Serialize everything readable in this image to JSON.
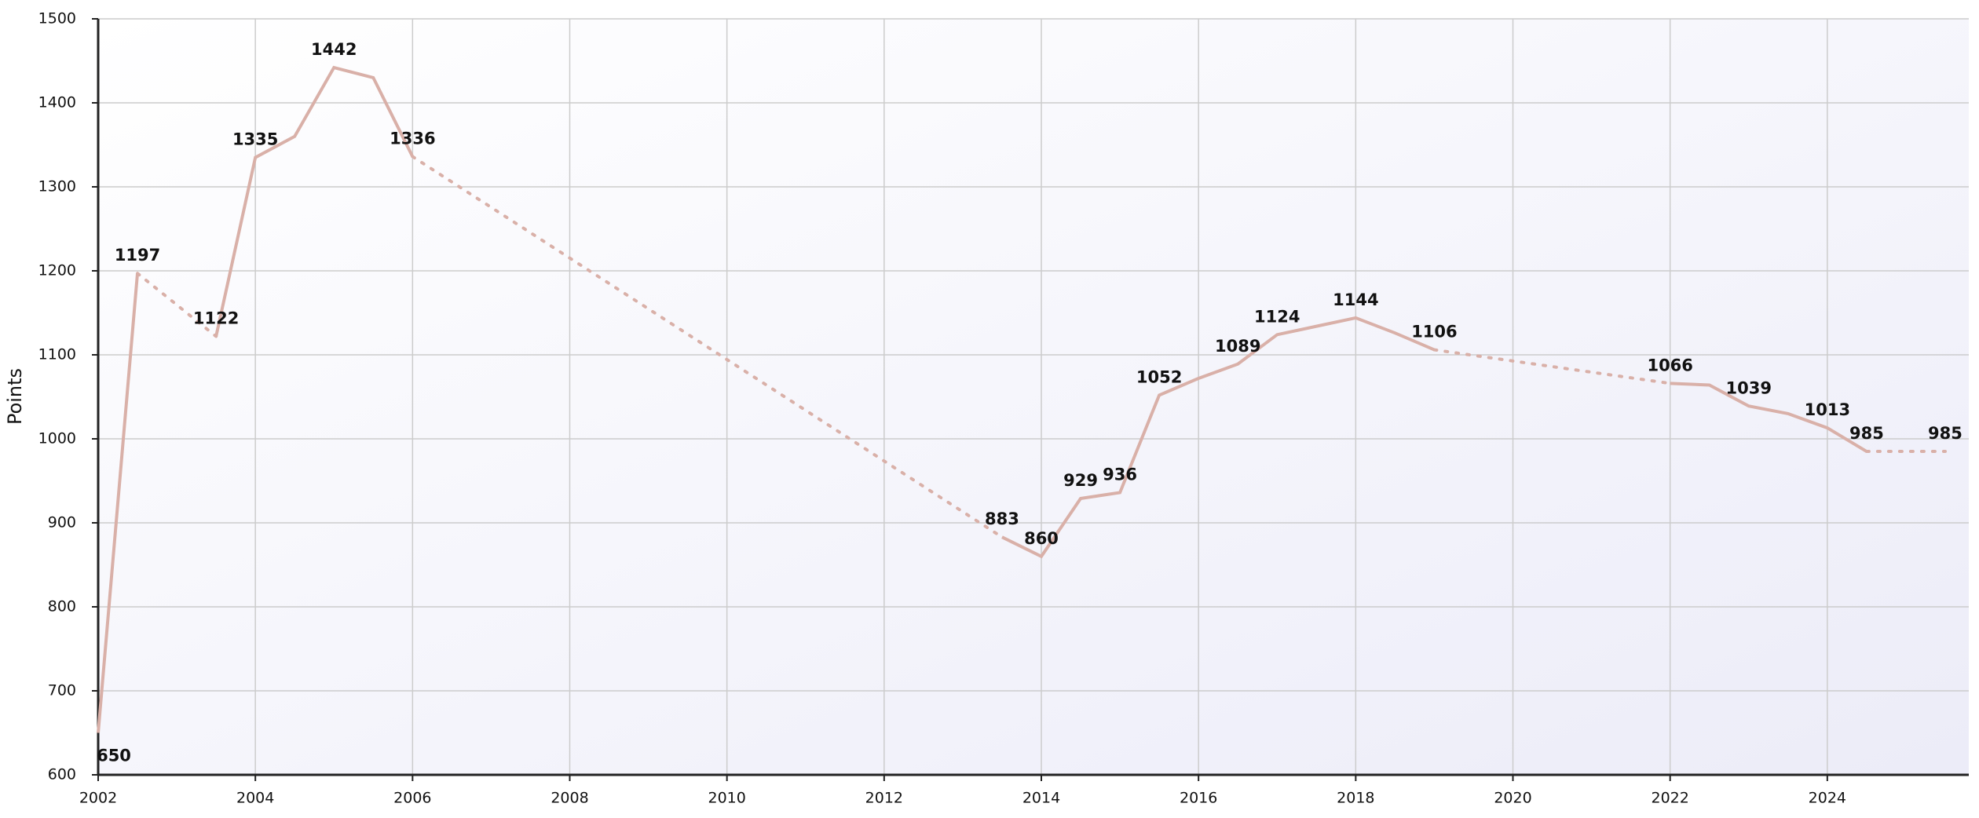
{
  "chart_data": {
    "type": "line",
    "y_label": "Points",
    "x": [
      2002,
      2002.5,
      2003.5,
      2004,
      2004.5,
      2005,
      2005.5,
      2006,
      2013.5,
      2014,
      2014.5,
      2015,
      2015.5,
      2016,
      2016.5,
      2017,
      2017.5,
      2018,
      2018.5,
      2019,
      2022,
      2022.5,
      2023,
      2023.5,
      2024,
      2024.5,
      2025.5
    ],
    "series": [
      {
        "color": "#d9b0a8",
        "values": [
          650,
          1197,
          1122,
          1335,
          1360,
          1442,
          1430,
          1336,
          883,
          860,
          929,
          936,
          1052,
          1072,
          1089,
          1124,
          1134,
          1144,
          1126,
          1106,
          1066,
          1064,
          1039,
          1030,
          1013,
          985,
          985
        ],
        "value_labels": [
          "650",
          "1197",
          "1122",
          "1335",
          null,
          "1442",
          null,
          "1336",
          "883",
          "860",
          "929",
          "936",
          "1052",
          null,
          "1089",
          "1124",
          null,
          "1144",
          null,
          "1106",
          "1066",
          null,
          "1039",
          null,
          "1013",
          "985",
          "985"
        ],
        "dotted_segments": [
          1,
          7,
          19,
          25
        ]
      }
    ],
    "xlim": [
      2002,
      2025.8
    ],
    "xticks": [
      2002,
      2004,
      2006,
      2008,
      2010,
      2012,
      2014,
      2016,
      2018,
      2020,
      2022,
      2024
    ],
    "ylim": [
      600,
      1500
    ],
    "yticks": [
      600,
      700,
      800,
      900,
      1000,
      1100,
      1200,
      1300,
      1400,
      1500
    ],
    "grid": true
  }
}
